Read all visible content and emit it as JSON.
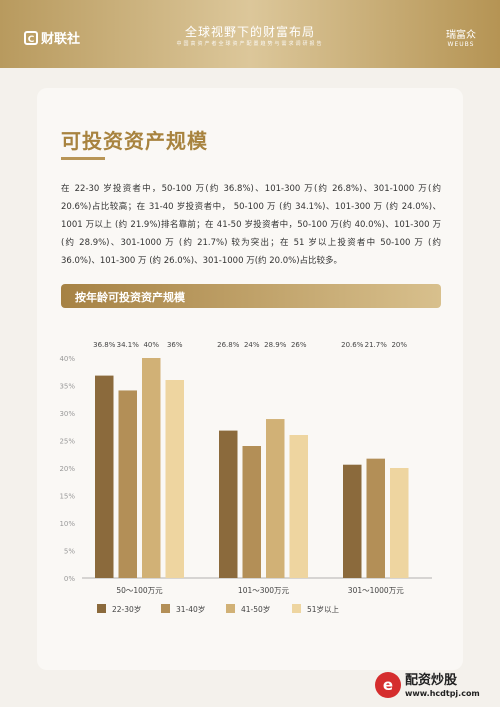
{
  "header": {
    "logo_text": "财联社",
    "logo_mark": "C",
    "title": "全球视野下的财富布局",
    "subtitle": "中国高资产者全球资产配置趋势与需求调研报告",
    "brand_cn": "瑞富众",
    "brand_en": "WEUBS"
  },
  "section": {
    "title": "可投资资产规模",
    "paragraph": "在 22-30 岁投资者中，50-100 万(约 36.8%)、101-300 万(约 26.8%)、301-1000 万(约 20.6%)占比较高；在 31-40 岁投资者中， 50-100 万 (约 34.1%)、101-300 万 (约 24.0%)、1001 万以上 (约 21.9%)排名靠前；在 41-50 岁投资者中，50-100 万(约 40.0%)、101-300 万(约 28.9%)、301-1000 万 (约 21.7%) 较为突出；在 51 岁以上投资者中 50-100 万 (约 36.0%)、101-300 万 (约 26.0%)、301-1000 万(约 20.0%)占比较多。",
    "chart_heading": "按年龄可投资资产规模"
  },
  "chart_data": {
    "type": "bar",
    "categories": [
      "50～100万元",
      "101～300万元",
      "301～1000万元"
    ],
    "series": [
      {
        "name": "22-30岁",
        "values": [
          36.8,
          26.8,
          20.6
        ],
        "labels": [
          "36.8%",
          "26.8%",
          "20.6%"
        ],
        "color": "#8b6a3c"
      },
      {
        "name": "31-40岁",
        "values": [
          34.1,
          24.0,
          21.7
        ],
        "labels": [
          "34.1%",
          "24%",
          "21.7%"
        ],
        "color": "#b38f57"
      },
      {
        "name": "41-50岁",
        "values": [
          40.0,
          28.9,
          null
        ],
        "labels": [
          "40%",
          "28.9%",
          ""
        ],
        "color": "#d1b176"
      },
      {
        "name": "51岁以上",
        "values": [
          36.0,
          26.0,
          20.0
        ],
        "labels": [
          "36%",
          "26%",
          "20%"
        ],
        "color": "#eed5a0"
      }
    ],
    "yticks": [
      "0%",
      "5%",
      "10%",
      "15%",
      "20%",
      "25%",
      "30%",
      "35%",
      "40%"
    ],
    "ylim": [
      0,
      42
    ],
    "grid": false,
    "legend": "bottom"
  },
  "footer": {
    "logo_cn": "配资炒股",
    "logo_url": "www.hcdtpj.com",
    "logo_icon": "e"
  }
}
